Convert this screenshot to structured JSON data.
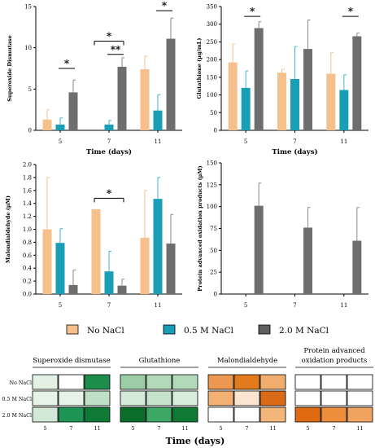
{
  "colors": {
    "no_nacl": "#F5C08C",
    "nacl_05": "#1A9EB5",
    "nacl_20": "#6E6E6E",
    "no_nacl_err": "#F5C08C",
    "nacl_05_err": "#3AB7CC",
    "nacl_20_err": "#8A8A8A"
  },
  "legend": {
    "items": [
      {
        "label": "No NaCl",
        "color": "#F5C08C"
      },
      {
        "label": "0.5 M NaCl",
        "color": "#1A9EB5"
      },
      {
        "label": "2.0 M NaCl",
        "color": "#5F5F5F"
      }
    ]
  },
  "chart_data": [
    {
      "type": "bar",
      "ylabel": "Superoxide Dismutase",
      "xlabel": "Time (days)",
      "categories": [
        "5",
        "7",
        "11"
      ],
      "ylim": [
        0,
        15
      ],
      "yticks": [
        0,
        5,
        10,
        15
      ],
      "series": [
        {
          "name": "No NaCl",
          "values": [
            1.3,
            0,
            7.4
          ],
          "errors": [
            1.2,
            0,
            1.6
          ]
        },
        {
          "name": "0.5 M NaCl",
          "values": [
            0.7,
            0.7,
            2.4
          ],
          "errors": [
            0.8,
            0.5,
            1.9
          ]
        },
        {
          "name": "2.0 M NaCl",
          "values": [
            4.6,
            7.7,
            11.1
          ],
          "errors": [
            1.5,
            1.1,
            2.5
          ]
        }
      ],
      "sig": [
        {
          "from": [
            0,
            1
          ],
          "to": [
            0,
            2
          ],
          "y": 7.5,
          "label": "*"
        },
        {
          "from": [
            1,
            0
          ],
          "to": [
            1,
            2
          ],
          "y": 10.8,
          "label": "*"
        },
        {
          "from": [
            1,
            1
          ],
          "to": [
            1,
            2
          ],
          "y": 9.2,
          "label": "**"
        },
        {
          "from": [
            2,
            1
          ],
          "to": [
            2,
            2
          ],
          "y": 14.5,
          "label": "*"
        }
      ]
    },
    {
      "type": "bar",
      "ylabel": "Glutathione (µg/mL)",
      "xlabel": "Time (days)",
      "categories": [
        "5",
        "7",
        "11"
      ],
      "ylim": [
        0,
        350
      ],
      "yticks": [
        0,
        50,
        100,
        150,
        200,
        250,
        300,
        350
      ],
      "series": [
        {
          "name": "No NaCl",
          "values": [
            192,
            163,
            160
          ],
          "errors": [
            52,
            10,
            60
          ]
        },
        {
          "name": "0.5 M NaCl",
          "values": [
            120,
            145,
            114
          ],
          "errors": [
            48,
            92,
            43
          ]
        },
        {
          "name": "2.0 M NaCl",
          "values": [
            289,
            230,
            266
          ],
          "errors": [
            18,
            82,
            9
          ]
        }
      ],
      "sig": [
        {
          "from": [
            0,
            1
          ],
          "to": [
            0,
            2
          ],
          "y": 322,
          "label": "*"
        },
        {
          "from": [
            2,
            1
          ],
          "to": [
            2,
            2
          ],
          "y": 322,
          "label": "*"
        }
      ]
    },
    {
      "type": "bar",
      "ylabel": "Malondialdehyde (µM)",
      "xlabel": "",
      "categories": [
        "5",
        "7",
        "11"
      ],
      "ylim": [
        0,
        2.0
      ],
      "yticks": [
        "0.0",
        "0.2",
        "0.4",
        "0.6",
        "0.8",
        "1.0",
        "1.2",
        "1.4",
        "1.6",
        "1.8",
        "2.0"
      ],
      "series": [
        {
          "name": "No NaCl",
          "values": [
            1.0,
            1.31,
            0.87
          ],
          "errors": [
            0.8,
            0,
            0.73
          ]
        },
        {
          "name": "0.5 M NaCl",
          "values": [
            0.79,
            0.35,
            1.47
          ],
          "errors": [
            0.22,
            0.31,
            0.33
          ]
        },
        {
          "name": "2.0 M NaCl",
          "values": [
            0.14,
            0.13,
            0.78
          ],
          "errors": [
            0.23,
            0.1,
            0.45
          ]
        }
      ],
      "sig": [
        {
          "from": [
            1,
            0
          ],
          "to": [
            1,
            2
          ],
          "y": 1.48,
          "label": "*"
        }
      ]
    },
    {
      "type": "bar",
      "ylabel": "Protein advanced oxidation products (µM)",
      "xlabel": "",
      "categories": [
        "5",
        "7",
        "11"
      ],
      "ylim": [
        0,
        150
      ],
      "yticks": [
        0,
        25,
        50,
        75,
        100,
        125,
        150
      ],
      "series": [
        {
          "name": "No NaCl",
          "values": [
            0,
            0,
            0
          ],
          "errors": [
            0,
            0,
            0
          ]
        },
        {
          "name": "0.5 M NaCl",
          "values": [
            0,
            0,
            0
          ],
          "errors": [
            0,
            0,
            0
          ]
        },
        {
          "name": "2.0 M NaCl",
          "values": [
            101,
            76,
            61
          ],
          "errors": [
            26,
            23,
            38
          ]
        }
      ],
      "sig": []
    },
    {
      "type": "heatmap",
      "row_labels": [
        "No NaCl",
        "0.5 M NaCl",
        "2.0 M NaCl"
      ],
      "col_labels": [
        "5",
        "7",
        "11"
      ],
      "xlabel": "Time (days)",
      "panels": [
        {
          "title": "Superoxide dismutase",
          "cells": [
            [
              "#E3F1E5",
              "#FFFFFF",
              "#1E8C4A"
            ],
            [
              "#E6F3E8",
              "#E6F3E8",
              "#BFDFC6"
            ],
            [
              "#D2E9D7",
              "#1E9554",
              "#0E7A35"
            ]
          ]
        },
        {
          "title": "Glutathione",
          "cells": [
            [
              "#9CCDA6",
              "#B3D9BB",
              "#B3D9BB"
            ],
            [
              "#D5EBD9",
              "#C6E3CC",
              "#D9EDDD"
            ],
            [
              "#0A6E2A",
              "#3DA766",
              "#0F7A34"
            ]
          ]
        },
        {
          "title": "Malondialdehyde",
          "cells": [
            [
              "#EC9850",
              "#E37A1C",
              "#F1AD6E"
            ],
            [
              "#F2B173",
              "#FBE5D0",
              "#DB6A16"
            ],
            [
              "#FFFFFF",
              "#FFFFFF",
              "#F2B57A"
            ]
          ]
        },
        {
          "title": "Protein advanced oxidation products",
          "cells": [
            [
              "#FFFFFF",
              "#FFFFFF",
              "#FFFFFF"
            ],
            [
              "#FFFFFF",
              "#FFFFFF",
              "#FFFFFF"
            ],
            [
              "#E06A12",
              "#EC8E3C",
              "#F1A460"
            ]
          ]
        }
      ]
    }
  ]
}
